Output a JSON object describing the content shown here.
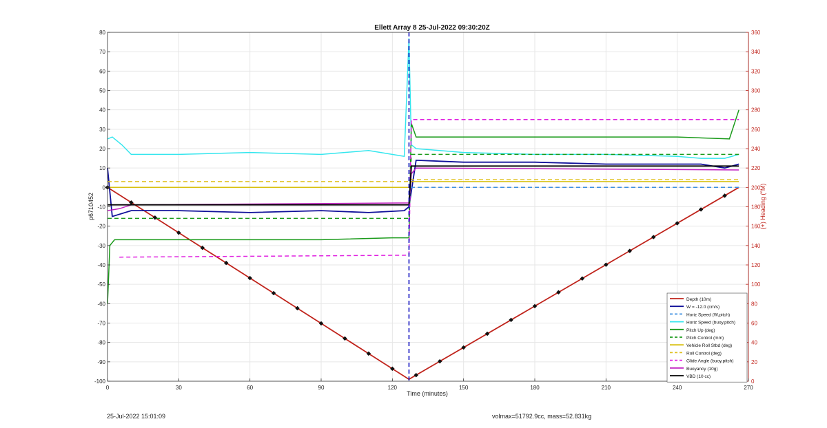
{
  "chart_data": {
    "type": "line",
    "title": "Ellett Array 8 25-Jul-2022 09:30:20Z",
    "xlabel": "Time (minutes)",
    "ylabel": "p6710452",
    "y2label": "(+) Heading (°M)",
    "xlim": [
      0,
      270
    ],
    "ylim": [
      -100,
      80
    ],
    "y2lim": [
      0,
      360
    ],
    "xticks": [
      "0",
      "30",
      "60",
      "90",
      "120",
      "150",
      "180",
      "210",
      "240",
      "270"
    ],
    "yticks": [
      "-100",
      "-90",
      "-80",
      "-70",
      "-60",
      "-50",
      "-40",
      "-30",
      "-20",
      "-10",
      "0",
      "10",
      "20",
      "30",
      "40",
      "50",
      "60",
      "70",
      "80"
    ],
    "y2ticks": [
      "0",
      "20",
      "40",
      "60",
      "80",
      "100",
      "120",
      "140",
      "160",
      "180",
      "200",
      "220",
      "240",
      "260",
      "280",
      "300",
      "320",
      "340",
      "360"
    ],
    "grid": true,
    "legend_position": "bottom-right",
    "apogee_time": 127,
    "series": [
      {
        "name": "Depth (10m)",
        "color": "#c0241c",
        "style": "solid",
        "x": [
          0,
          127,
          266
        ],
        "y": [
          0,
          -99,
          0
        ]
      },
      {
        "name": "W = -12.0 (cm/s)",
        "color": "#10109a",
        "style": "solid",
        "x": [
          0,
          2,
          10,
          30,
          60,
          90,
          110,
          125,
          127,
          130,
          150,
          180,
          210,
          240,
          250,
          260,
          266
        ],
        "y": [
          10,
          -15,
          -12,
          -12,
          -13,
          -12,
          -13,
          -12,
          -10,
          14,
          13,
          13,
          12,
          12,
          12,
          10,
          12
        ]
      },
      {
        "name": "Horiz Speed (W,pitch)",
        "color": "#3f8fe0",
        "style": "dashed",
        "x": [
          0,
          127,
          127.5,
          266
        ],
        "y": [
          0,
          0,
          0,
          0
        ]
      },
      {
        "name": "Horiz Speed (buoy,pitch)",
        "color": "#35e6ee",
        "style": "solid",
        "x": [
          0,
          2,
          6,
          10,
          30,
          60,
          90,
          110,
          125,
          127,
          128,
          130,
          150,
          180,
          210,
          240,
          250,
          260,
          266
        ],
        "y": [
          25,
          26,
          22,
          17,
          17,
          18,
          17,
          19,
          16,
          77,
          22,
          20,
          18,
          17,
          17,
          16,
          15,
          15,
          17
        ]
      },
      {
        "name": "Pitch Up (deg)",
        "color": "#1a9a1a",
        "style": "solid",
        "x": [
          0,
          1,
          3,
          30,
          60,
          90,
          120,
          127,
          128,
          130,
          150,
          180,
          210,
          240,
          262,
          266
        ],
        "y": [
          -60,
          -30,
          -27,
          -27,
          -27,
          -27,
          -26,
          -26,
          33,
          26,
          26,
          26,
          26,
          26,
          25,
          40
        ]
      },
      {
        "name": "Pitch Control (mm)",
        "color": "#1a9a1a",
        "style": "dashed",
        "x": [
          0,
          127,
          128,
          266
        ],
        "y": [
          -16,
          -16,
          17,
          17
        ]
      },
      {
        "name": "Vehicle Roll Stbd (deg)",
        "color": "#d8c010",
        "style": "solid",
        "x": [
          0,
          127,
          128,
          266
        ],
        "y": [
          0,
          0,
          3,
          3
        ]
      },
      {
        "name": "Roll Control (deg)",
        "color": "#e0c020",
        "style": "dashed",
        "x": [
          0,
          127,
          128,
          266
        ],
        "y": [
          3,
          3,
          4,
          4
        ]
      },
      {
        "name": "Glide Angle (buoy,pitch)",
        "color": "#e020e0",
        "style": "dashed",
        "x": [
          5,
          127,
          128,
          266
        ],
        "y": [
          -36,
          -35,
          35,
          35
        ]
      },
      {
        "name": "Buoyancy (10g)",
        "color": "#c020c0",
        "style": "solid",
        "x": [
          0,
          5,
          10,
          127,
          128,
          130,
          266
        ],
        "y": [
          -12,
          -11,
          -9,
          -8,
          7,
          10,
          9
        ]
      },
      {
        "name": "VBD (10 cc)",
        "color": "#000000",
        "style": "solid",
        "x": [
          0,
          127,
          128,
          266
        ],
        "y": [
          -9,
          -9,
          11,
          11
        ]
      }
    ]
  },
  "legend": [
    {
      "label": "Depth (10m)",
      "color": "#c0241c",
      "style": "solid"
    },
    {
      "label": "W = -12.0 (cm/s)",
      "color": "#10109a",
      "style": "solid"
    },
    {
      "label": "Horiz Speed (W,pitch)",
      "color": "#3f8fe0",
      "style": "dashed"
    },
    {
      "label": "Horiz Speed (buoy,pitch)",
      "color": "#35e6ee",
      "style": "solid"
    },
    {
      "label": "Pitch Up (deg)",
      "color": "#1a9a1a",
      "style": "solid"
    },
    {
      "label": "Pitch Control (mm)",
      "color": "#1a9a1a",
      "style": "dashed"
    },
    {
      "label": "Vehicle Roll Stbd (deg)",
      "color": "#d8c010",
      "style": "solid"
    },
    {
      "label": "Roll Control (deg)",
      "color": "#e0c020",
      "style": "dashed"
    },
    {
      "label": "Glide Angle (buoy,pitch)",
      "color": "#e020e0",
      "style": "dashed"
    },
    {
      "label": "Buoyancy (10g)",
      "color": "#c020c0",
      "style": "solid"
    },
    {
      "label": "VBD (10 cc)",
      "color": "#000000",
      "style": "solid"
    }
  ],
  "footer": {
    "left": "25-Jul-2022 15:01:09",
    "right": "volmax=51792.9cc, mass=52.831kg"
  }
}
